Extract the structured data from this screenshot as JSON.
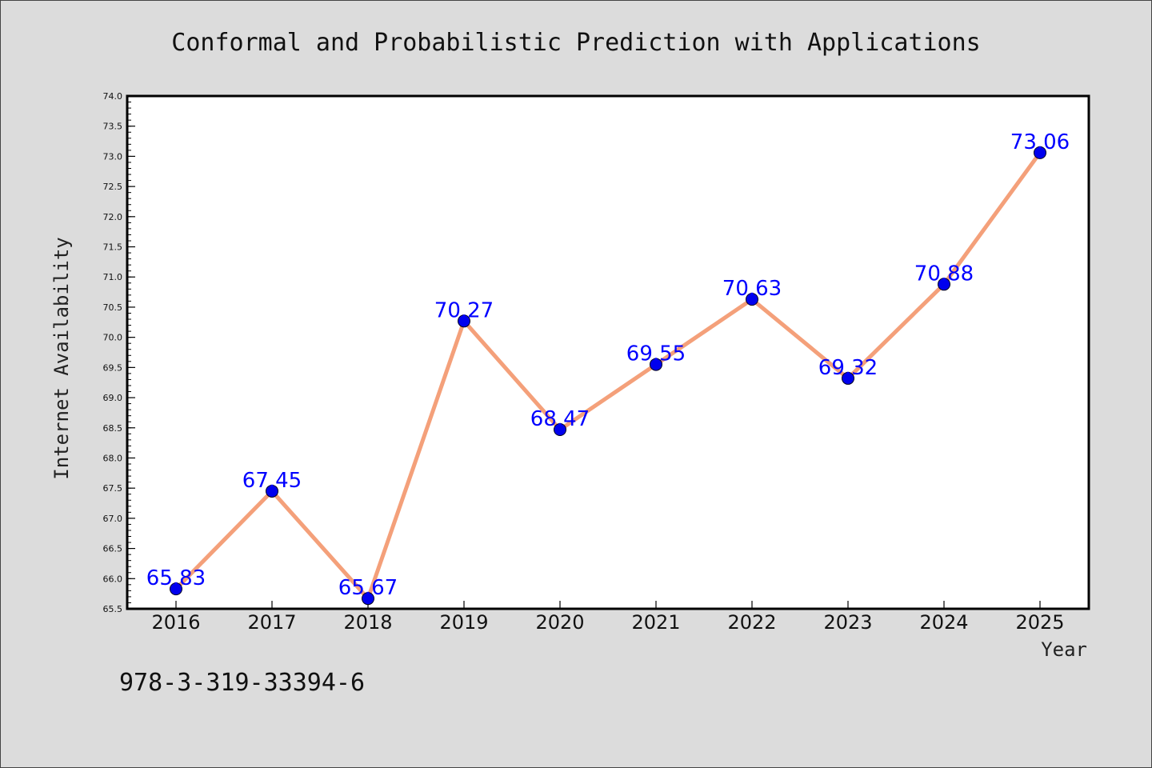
{
  "chart_data": {
    "type": "line",
    "title": "Conformal and Probabilistic Prediction with Applications",
    "xlabel": "Year",
    "ylabel": "Internet Availability",
    "categories": [
      "2016",
      "2017",
      "2018",
      "2019",
      "2020",
      "2021",
      "2022",
      "2023",
      "2024",
      "2025"
    ],
    "series": [
      {
        "values": [
          65.83,
          67.45,
          65.67,
          70.27,
          68.47,
          69.55,
          70.63,
          69.32,
          70.88,
          73.06
        ],
        "labels": [
          "65.83",
          "67.45",
          "65.67",
          "70.27",
          "68.47",
          "69.55",
          "70.63",
          "69.32",
          "70.88",
          "73.06"
        ]
      }
    ],
    "ylim": [
      65.5,
      74.0
    ],
    "yticks": [
      "65.5",
      "66.0",
      "66.5",
      "67.0",
      "67.5",
      "68.0",
      "68.5",
      "69.0",
      "69.5",
      "70.0",
      "70.5",
      "71.0",
      "71.5",
      "72.0",
      "72.5",
      "73.0",
      "73.5",
      "74.0"
    ],
    "grid": false,
    "colors": {
      "line": "#f4a07a",
      "marker": "#0000ee",
      "label": "#0000ff",
      "plot_bg": "#ffffff",
      "page_bg": "#dcdcdc"
    }
  },
  "footer": {
    "isbn": "978-3-319-33394-6"
  }
}
